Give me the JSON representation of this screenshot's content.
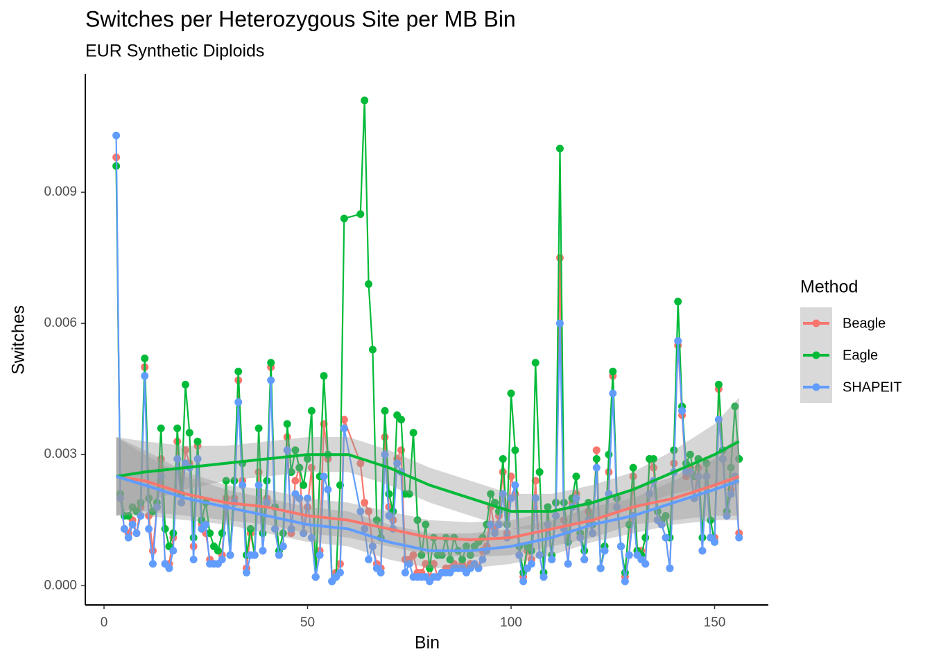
{
  "chart_data": {
    "type": "line",
    "title": "Switches per Heterozygous Site per MB Bin",
    "subtitle": "EUR Synthetic Diploids",
    "x_label": "Bin",
    "y_label": "Switches",
    "legend_title": "Method",
    "legend_position": "right",
    "xlim": [
      -4.6,
      163.2
    ],
    "xticks": [
      0,
      50,
      100,
      150
    ],
    "ylim": [
      -0.00044,
      0.0117
    ],
    "yticks": [
      {
        "value": 0,
        "label": "0.000"
      },
      {
        "value": 0.003,
        "label": "0.003"
      },
      {
        "value": 0.006,
        "label": "0.006"
      },
      {
        "value": 0.009,
        "label": "0.009"
      }
    ],
    "x": [
      3,
      4,
      5,
      6,
      7,
      8,
      9,
      10,
      11,
      12,
      13,
      14,
      15,
      16,
      17,
      18,
      19,
      20,
      21,
      22,
      23,
      24,
      25,
      26,
      27,
      28,
      29,
      30,
      31,
      32,
      33,
      34,
      35,
      36,
      37,
      38,
      39,
      40,
      41,
      42,
      43,
      44,
      45,
      46,
      47,
      48,
      49,
      50,
      51,
      52,
      53,
      54,
      55,
      56,
      57,
      58,
      59,
      63,
      64,
      65,
      66,
      67,
      68,
      69,
      70,
      71,
      72,
      73,
      74,
      75,
      76,
      77,
      78,
      79,
      80,
      81,
      82,
      83,
      84,
      85,
      86,
      87,
      88,
      89,
      90,
      91,
      92,
      93,
      94,
      95,
      96,
      97,
      98,
      99,
      100,
      101,
      102,
      103,
      104,
      105,
      106,
      107,
      108,
      109,
      110,
      111,
      112,
      113,
      114,
      115,
      116,
      117,
      118,
      119,
      120,
      121,
      122,
      123,
      124,
      125,
      126,
      127,
      128,
      129,
      130,
      131,
      132,
      133,
      134,
      135,
      136,
      137,
      138,
      139,
      140,
      141,
      142,
      143,
      144,
      145,
      146,
      147,
      148,
      149,
      150,
      151,
      152,
      153,
      154,
      155,
      156
    ],
    "series": [
      {
        "name": "Beagle",
        "color": "#F8766D",
        "values": [
          0.0098,
          0.002,
          0.0013,
          0.0012,
          0.0015,
          0.0012,
          0.0018,
          0.005,
          0.0016,
          0.0008,
          0.0018,
          0.0029,
          0.0005,
          0.0005,
          0.0011,
          0.0033,
          0.0019,
          0.0031,
          0.0028,
          0.0009,
          0.0032,
          0.0014,
          0.0012,
          0.0006,
          0.0005,
          0.0005,
          0.0007,
          0.002,
          0.0007,
          0.002,
          0.0047,
          0.0024,
          0.0004,
          0.0012,
          0.0007,
          0.0026,
          0.0008,
          0.002,
          0.005,
          0.0013,
          0.0007,
          0.0009,
          0.0034,
          0.0012,
          0.0024,
          0.0027,
          0.0012,
          0.0018,
          0.0027,
          0.0002,
          0.0008,
          0.0037,
          0.0029,
          0.0001,
          0.0003,
          0.0005,
          0.0038,
          0.0028,
          0.0019,
          0.0017,
          0.0009,
          0.0005,
          0.0004,
          0.0034,
          0.0018,
          0.0015,
          0.0029,
          0.0031,
          0.0006,
          0.0006,
          0.0007,
          0.0003,
          0.0003,
          0.0005,
          0.0002,
          0.0005,
          0.0002,
          0.0003,
          0.0004,
          0.0004,
          0.0005,
          0.0004,
          0.0005,
          0.0004,
          0.0005,
          0.0005,
          0.0004,
          0.0008,
          0.0009,
          0.0018,
          0.0013,
          0.0016,
          0.0026,
          0.0012,
          0.0025,
          0.0021,
          0.0007,
          0.0002,
          0.0008,
          0.0006,
          0.0024,
          0.0007,
          0.0002,
          0.0018,
          0.0006,
          0.0019,
          0.0075,
          0.0015,
          0.0005,
          0.0019,
          0.0021,
          0.0011,
          0.0006,
          0.0017,
          0.0012,
          0.0031,
          0.0004,
          0.0009,
          0.0026,
          0.0048,
          0.002,
          0.0009,
          0.0002,
          0.0007,
          0.0025,
          0.0008,
          0.0008,
          0.0005,
          0.0029,
          0.0027,
          0.0015,
          0.0014,
          0.0011,
          0.0004,
          0.0028,
          0.0055,
          0.0039,
          0.0025,
          0.0027,
          0.002,
          0.0027,
          0.0008,
          0.0028,
          0.0011,
          0.0011,
          0.0045,
          0.0029,
          0.0017,
          0.0022,
          0.0025,
          0.0012
        ],
        "smooth": {
          "x": [
            3,
            10,
            20,
            30,
            40,
            50,
            60,
            70,
            80,
            90,
            100,
            110,
            120,
            130,
            140,
            150,
            156
          ],
          "values": [
            0.0025,
            0.0024,
            0.0021,
            0.0019,
            0.0018,
            0.0016,
            0.0015,
            0.0013,
            0.0011,
            0.00105,
            0.0011,
            0.0013,
            0.0015,
            0.0018,
            0.002,
            0.0023,
            0.0025
          ],
          "ci": [
            0.0009,
            0.0007,
            0.0005,
            0.0004,
            0.0004,
            0.0004,
            0.0004,
            0.0004,
            0.0004,
            0.0004,
            0.0004,
            0.0004,
            0.0004,
            0.0004,
            0.0005,
            0.0007,
            0.0009
          ]
        }
      },
      {
        "name": "Eagle",
        "color": "#00BA38",
        "values": [
          0.0096,
          0.0021,
          0.0016,
          0.0016,
          0.0018,
          0.0017,
          0.0019,
          0.0052,
          0.002,
          0.0017,
          0.0019,
          0.0036,
          0.0013,
          0.0009,
          0.0012,
          0.0036,
          0.0021,
          0.0046,
          0.0035,
          0.0011,
          0.0033,
          0.0015,
          0.0019,
          0.0012,
          0.0009,
          0.0008,
          0.0012,
          0.0024,
          0.0007,
          0.0024,
          0.0049,
          0.0028,
          0.0007,
          0.0013,
          0.0007,
          0.0036,
          0.0012,
          0.0024,
          0.0051,
          0.0018,
          0.0008,
          0.0012,
          0.0037,
          0.0026,
          0.0031,
          0.0027,
          0.0023,
          0.0029,
          0.004,
          0.0002,
          0.0025,
          0.0048,
          0.003,
          0.0001,
          0.0002,
          0.0023,
          0.0084,
          0.0085,
          0.0111,
          0.0069,
          0.0054,
          0.0015,
          0.0011,
          0.004,
          0.0021,
          0.0017,
          0.0039,
          0.0038,
          0.0021,
          0.0021,
          0.0035,
          0.0015,
          0.0007,
          0.0014,
          0.0004,
          0.0011,
          0.0007,
          0.0007,
          0.0011,
          0.0006,
          0.0011,
          0.0008,
          0.0006,
          0.0009,
          0.0007,
          0.0009,
          0.001,
          0.0011,
          0.0014,
          0.0021,
          0.0019,
          0.0017,
          0.0029,
          0.0014,
          0.0044,
          0.0031,
          0.0009,
          0.0003,
          0.0009,
          0.0008,
          0.0051,
          0.0026,
          0.0003,
          0.0018,
          0.0007,
          0.0019,
          0.01,
          0.0019,
          0.001,
          0.002,
          0.0025,
          0.0012,
          0.0008,
          0.0019,
          0.0014,
          0.0029,
          0.0004,
          0.0009,
          0.003,
          0.0049,
          0.002,
          0.0009,
          0.0003,
          0.0014,
          0.0027,
          0.0008,
          0.0007,
          0.0011,
          0.0029,
          0.0029,
          0.0017,
          0.0015,
          0.0016,
          0.0011,
          0.0031,
          0.0065,
          0.0041,
          0.0028,
          0.003,
          0.0025,
          0.0029,
          0.0011,
          0.0028,
          0.0015,
          0.001,
          0.0046,
          0.0031,
          0.0017,
          0.0027,
          0.0041,
          0.0029
        ],
        "smooth": {
          "x": [
            3,
            10,
            20,
            30,
            40,
            50,
            60,
            70,
            80,
            90,
            100,
            110,
            120,
            130,
            140,
            150,
            156
          ],
          "values": [
            0.0025,
            0.0026,
            0.0027,
            0.0028,
            0.0029,
            0.003,
            0.003,
            0.0027,
            0.0023,
            0.002,
            0.0017,
            0.0017,
            0.0019,
            0.0022,
            0.0026,
            0.003,
            0.0033
          ],
          "ci": [
            0.0009,
            0.0007,
            0.0005,
            0.0004,
            0.0004,
            0.0004,
            0.0004,
            0.0004,
            0.0004,
            0.0004,
            0.0004,
            0.0004,
            0.0004,
            0.0004,
            0.0005,
            0.0007,
            0.001
          ]
        }
      },
      {
        "name": "SHAPEIT",
        "color": "#619CFF",
        "values": [
          0.0103,
          0.002,
          0.0013,
          0.0011,
          0.0014,
          0.0012,
          0.0016,
          0.0048,
          0.0013,
          0.0005,
          0.0018,
          0.0025,
          0.0005,
          0.0004,
          0.0008,
          0.0029,
          0.0019,
          0.0028,
          0.0027,
          0.0006,
          0.0029,
          0.0013,
          0.0014,
          0.0005,
          0.0005,
          0.0005,
          0.0006,
          0.0018,
          0.0007,
          0.0019,
          0.0042,
          0.0023,
          0.0003,
          0.0007,
          0.0007,
          0.0023,
          0.0008,
          0.0019,
          0.0047,
          0.0013,
          0.0007,
          0.0009,
          0.0031,
          0.0013,
          0.0021,
          0.002,
          0.0012,
          0.002,
          0.0011,
          0.0002,
          0.0007,
          0.0025,
          0.0022,
          0.0001,
          0.0002,
          0.0003,
          0.0036,
          0.0017,
          0.0013,
          0.0006,
          0.0009,
          0.0004,
          0.0003,
          0.003,
          0.0016,
          0.0013,
          0.0028,
          0.0026,
          0.0003,
          0.0005,
          0.0002,
          0.0002,
          0.0002,
          0.0002,
          0.0001,
          0.0002,
          0.0002,
          0.0003,
          0.0003,
          0.0003,
          0.0004,
          0.0004,
          0.0004,
          0.0003,
          0.0004,
          0.0005,
          0.0004,
          0.0006,
          0.0008,
          0.0014,
          0.0012,
          0.0014,
          0.0021,
          0.0011,
          0.002,
          0.0023,
          0.0007,
          0.0001,
          0.0004,
          0.0005,
          0.002,
          0.0007,
          0.0002,
          0.0014,
          0.0006,
          0.0016,
          0.006,
          0.0013,
          0.0005,
          0.0018,
          0.002,
          0.0011,
          0.0006,
          0.0015,
          0.0012,
          0.0027,
          0.0004,
          0.0008,
          0.0021,
          0.0044,
          0.0018,
          0.0009,
          0.0001,
          0.0007,
          0.0016,
          0.0007,
          0.0006,
          0.0005,
          0.0021,
          0.0024,
          0.0015,
          0.0014,
          0.0011,
          0.0004,
          0.0026,
          0.0056,
          0.004,
          0.0026,
          0.0026,
          0.002,
          0.0025,
          0.0008,
          0.0025,
          0.0011,
          0.001,
          0.0038,
          0.0029,
          0.0016,
          0.0021,
          0.0025,
          0.0011
        ],
        "smooth": {
          "x": [
            3,
            10,
            20,
            30,
            40,
            50,
            60,
            70,
            80,
            90,
            100,
            110,
            120,
            130,
            140,
            150,
            156
          ],
          "values": [
            0.0025,
            0.0023,
            0.002,
            0.0018,
            0.0016,
            0.0014,
            0.0013,
            0.001,
            0.0008,
            0.0008,
            0.0009,
            0.0011,
            0.0014,
            0.0016,
            0.0019,
            0.0022,
            0.0024
          ],
          "ci": [
            0.0009,
            0.0007,
            0.0005,
            0.0004,
            0.0004,
            0.0004,
            0.0004,
            0.0004,
            0.0004,
            0.0004,
            0.0004,
            0.0004,
            0.0004,
            0.0004,
            0.0005,
            0.0007,
            0.0009
          ]
        }
      }
    ]
  }
}
